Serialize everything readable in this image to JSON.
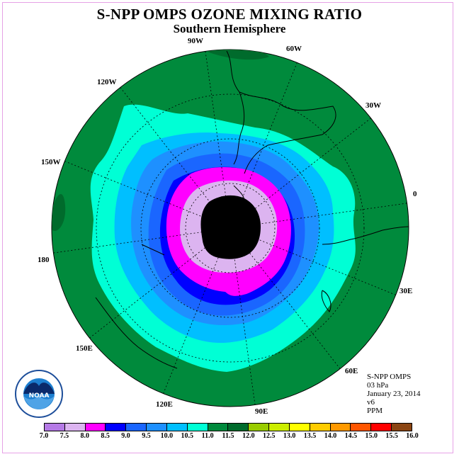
{
  "header": {
    "title": "S-NPP OMPS OZONE MIXING RATIO",
    "subtitle": "Southern Hemisphere"
  },
  "longitude_labels": [
    "90W",
    "60W",
    "30W",
    "0",
    "30E",
    "60E",
    "90E",
    "120E",
    "150E",
    "180",
    "150W",
    "120W"
  ],
  "info": {
    "instrument": "S-NPP OMPS",
    "level": "03 hPa",
    "date": "January 23, 2014",
    "version": "v6",
    "units": "PPM"
  },
  "logo": {
    "text": "NOAA",
    "ring_text": "NATIONAL OCEANIC AND ATMOSPHERIC ADMINISTRATION U.S. DEPARTMENT OF COMMERCE"
  },
  "colorbar": {
    "colors": [
      "#b57ae6",
      "#dcb4f0",
      "#ff00ff",
      "#0000ff",
      "#1a66ff",
      "#1e90ff",
      "#00bfff",
      "#00ffd5",
      "#008a3c",
      "#006b2c",
      "#99cc00",
      "#ccee00",
      "#ffff00",
      "#ffcc00",
      "#ff9900",
      "#ff5500",
      "#ff0000",
      "#8b4513"
    ],
    "ticks": [
      "7.0",
      "7.5",
      "8.0",
      "8.5",
      "9.0",
      "9.5",
      "10.0",
      "10.5",
      "11.0",
      "11.5",
      "12.0",
      "12.5",
      "13.0",
      "13.5",
      "14.0",
      "14.5",
      "15.0",
      "15.5",
      "16.0"
    ]
  },
  "map": {
    "background_color": "#008a3c",
    "contour_colors": [
      "#00ffd5",
      "#00bfff",
      "#1e90ff",
      "#1a66ff",
      "#0000ff",
      "#ff00ff",
      "#dcb4f0"
    ]
  }
}
